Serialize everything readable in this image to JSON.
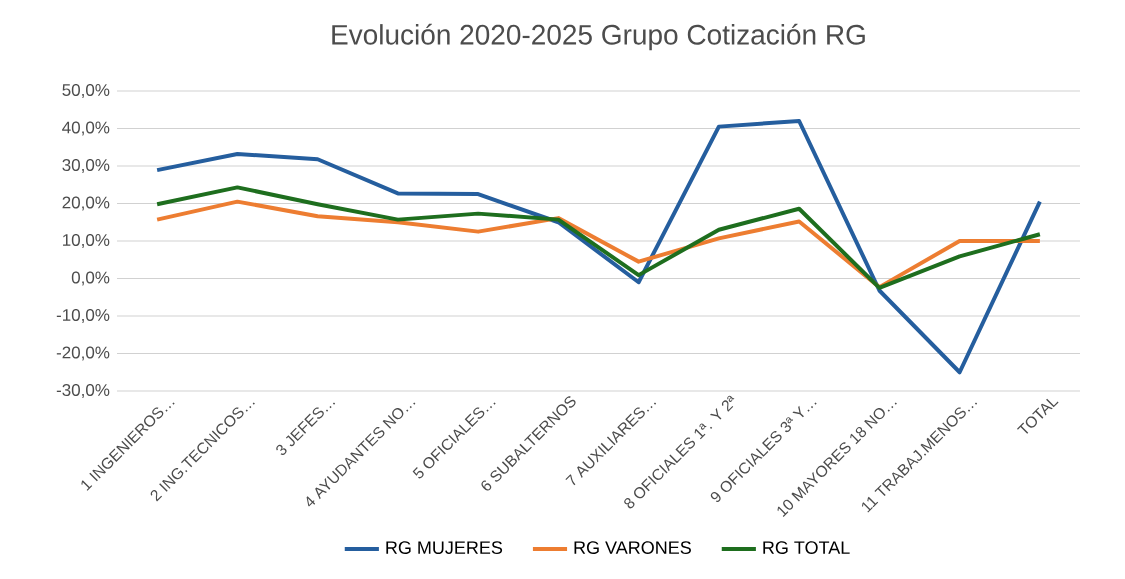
{
  "chart_data": {
    "type": "line",
    "title": "Evolución 2020-2025 Grupo Cotización RG",
    "categories": [
      "1 INGENIEROS…",
      "2 ING.TECNICOS…",
      "3 JEFES…",
      "4 AYUDANTES NO…",
      "5 OFICIALES…",
      "6 SUBALTERNOS",
      "7 AUXILIARES…",
      "8 OFICIALES 1ª. Y 2ª",
      "9 OFICIALES 3ª Y…",
      "10 MAYORES 18 NO…",
      "11 TRABAJ.MENOS…",
      "TOTAL"
    ],
    "series": [
      {
        "name": "RG MUJERES",
        "color": "#255e9e",
        "values": [
          28.9,
          33.2,
          31.8,
          22.7,
          22.5,
          15.0,
          -1.0,
          40.5,
          42.0,
          -3.2,
          -25.0,
          20.5
        ]
      },
      {
        "name": "RG VARONES",
        "color": "#ed7d31",
        "values": [
          15.7,
          20.5,
          16.6,
          15.0,
          12.5,
          16.1,
          4.5,
          10.7,
          15.2,
          -2.3,
          10.0,
          10.0
        ]
      },
      {
        "name": "RG TOTAL",
        "color": "#1e6e1e",
        "values": [
          19.8,
          24.3,
          19.8,
          15.7,
          17.3,
          15.7,
          0.9,
          13.0,
          18.6,
          -2.5,
          5.9,
          11.8
        ]
      }
    ],
    "ylim": [
      -30,
      50
    ],
    "yticks": [
      {
        "value": -30,
        "label": "-30,0%"
      },
      {
        "value": -20,
        "label": "-20,0%"
      },
      {
        "value": -10,
        "label": "-10,0%"
      },
      {
        "value": 0,
        "label": "0,0%"
      },
      {
        "value": 10,
        "label": "10,0%"
      },
      {
        "value": 20,
        "label": "20,0%"
      },
      {
        "value": 30,
        "label": "30,0%"
      },
      {
        "value": 40,
        "label": "40,0%"
      },
      {
        "value": 50,
        "label": "50,0%"
      }
    ],
    "grid": "y",
    "legend": "bottom",
    "marker": "none",
    "line_style": "solid"
  }
}
